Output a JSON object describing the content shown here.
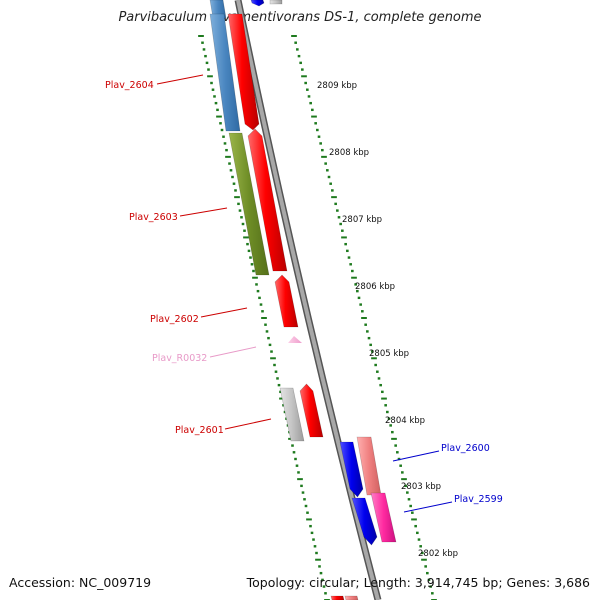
{
  "title": "Parvibaculum lavamentivorans DS-1, complete genome",
  "footer": {
    "accession": "Accession: NC_009719",
    "summary": "Topology: circular; Length: 3,914,745 bp; Genes: 3,686"
  },
  "colors": {
    "ruler_ticks": "#1e7a1e",
    "backbone": "#888888",
    "label_red": "#cc0000",
    "label_blue": "#0000cc",
    "label_pink": "#e89ac8"
  },
  "scale_labels": [
    "2809 kbp",
    "2808 kbp",
    "2807 kbp",
    "2806 kbp",
    "2805 kbp",
    "2804 kbp",
    "2803 kbp",
    "2802 kbp"
  ],
  "genes": [
    {
      "label": "Plav_2604",
      "color": "#cc0000"
    },
    {
      "label": "Plav_2603",
      "color": "#cc0000"
    },
    {
      "label": "Plav_2602",
      "color": "#cc0000"
    },
    {
      "label": "Plav_R0032",
      "color": "#e89ac8"
    },
    {
      "label": "Plav_2601",
      "color": "#cc0000"
    },
    {
      "label": "Plav_2600",
      "color": "#0000cc"
    },
    {
      "label": "Plav_2599",
      "color": "#0000cc"
    }
  ]
}
